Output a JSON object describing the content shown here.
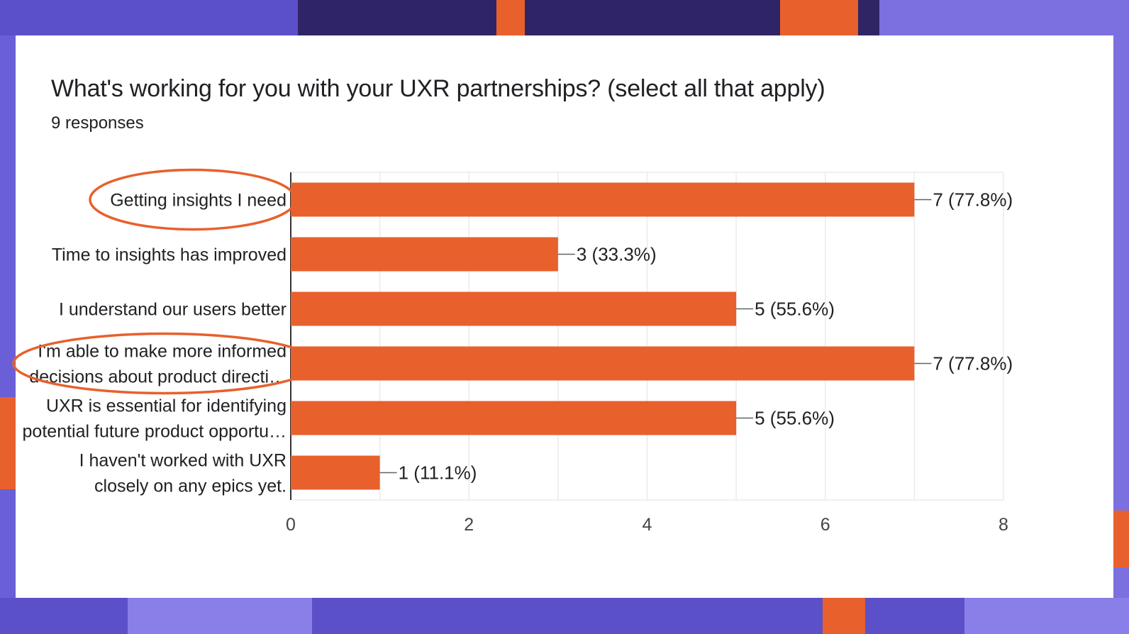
{
  "page": {
    "title": "What's working for you with your UXR partnerships? (select all that apply)",
    "subtitle": "9 responses"
  },
  "colors": {
    "bar": "#e8602c",
    "annotation": "#e8602c",
    "card": "#ffffff",
    "background": "#2f2566",
    "background_accent": "#7c6fe0",
    "background_orange": "#e8602c"
  },
  "chart_data": {
    "type": "bar",
    "orientation": "horizontal",
    "categories": [
      [
        "Getting insights I need"
      ],
      [
        "Time to insights has improved"
      ],
      [
        "I understand our users better"
      ],
      [
        "I'm able to make more informed",
        "decisions about product directi…"
      ],
      [
        "UXR is essential for identifying",
        "potential future product opportu…"
      ],
      [
        "I haven't worked with UXR",
        "closely on any epics yet."
      ]
    ],
    "values": [
      7,
      3,
      5,
      7,
      5,
      1
    ],
    "data_labels": [
      "7 (77.8%)",
      "3 (33.3%)",
      "5 (55.6%)",
      "7 (77.8%)",
      "5 (55.6%)",
      "1 (11.1%)"
    ],
    "xlim": [
      0,
      8
    ],
    "xticks": [
      0,
      2,
      4,
      6,
      8
    ],
    "grid": true,
    "annotated_categories": [
      0,
      3
    ]
  }
}
